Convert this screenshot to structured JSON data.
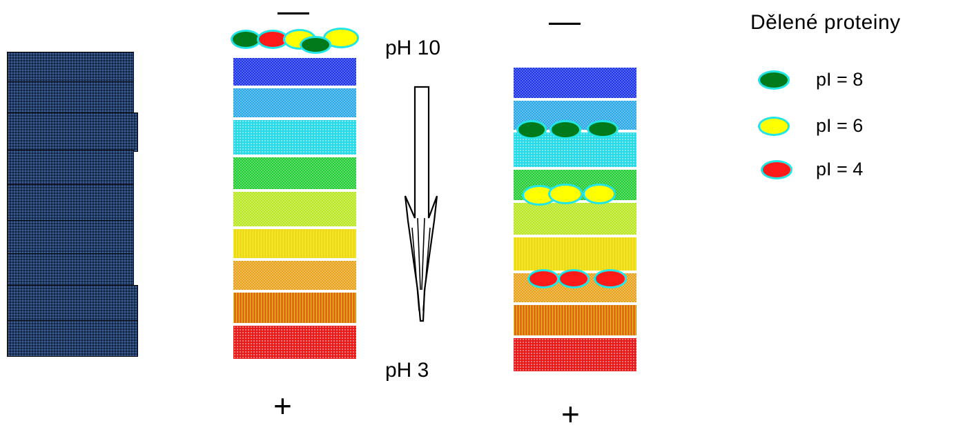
{
  "labels": {
    "minus": "—",
    "plus": "+",
    "ph_top": "pH 10",
    "ph_bottom": "pH 3"
  },
  "legend": {
    "title": "Dělené proteiny",
    "items": [
      {
        "label": "pI = 8",
        "fill": "#007a1a"
      },
      {
        "label": "pI = 6",
        "fill": "#ffff00"
      },
      {
        "label": "pI = 4",
        "fill": "#ff1a1a"
      }
    ]
  },
  "colors": {
    "dark_column": "#243e66",
    "blob_outline": "#22e6e6",
    "band_colors": [
      "#1a33e6",
      "#2aa8e6",
      "#27d8e6",
      "#22cc33",
      "#b8e61f",
      "#f0e01a",
      "#e8a21a",
      "#e8661a",
      "#e81a1a"
    ]
  }
}
